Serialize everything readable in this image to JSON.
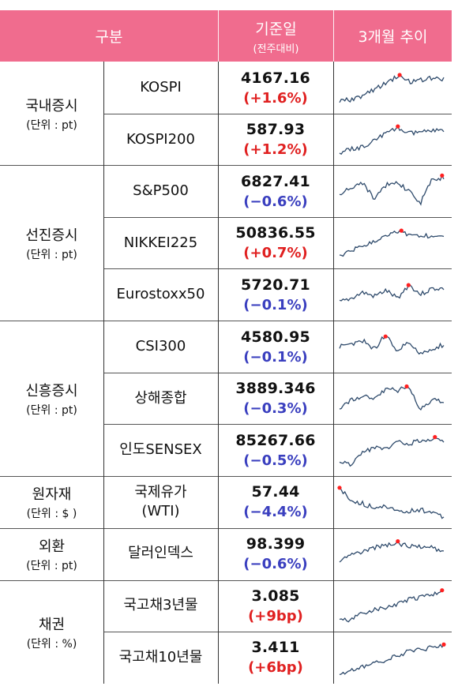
{
  "header": {
    "category": "구분",
    "date_label": "기준일",
    "date_sub": "(전주대비)",
    "trend_label": "3개월 추이"
  },
  "groups": [
    {
      "name": "국내증시",
      "unit": "(단위 : pt)"
    },
    {
      "name": "선진증시",
      "unit": "(단위 : pt)"
    },
    {
      "name": "신흥증시",
      "unit": "(단위 : pt)"
    },
    {
      "name": "원자재",
      "unit": "(단위 : $ )"
    },
    {
      "name": "외환",
      "unit": "(단위 : pt)"
    },
    {
      "name": "채권",
      "unit": "(단위 : %)"
    }
  ],
  "rows": [
    {
      "name": "KOSPI",
      "value": "4167.16",
      "change": "(+1.6%)",
      "direction": "up"
    },
    {
      "name": "KOSPI200",
      "value": "587.93",
      "change": "(+1.2%)",
      "direction": "up"
    },
    {
      "name": "S&P500",
      "value": "6827.41",
      "change": "(−0.6%)",
      "direction": "down"
    },
    {
      "name": "NIKKEI225",
      "value": "50836.55",
      "change": "(+0.7%)",
      "direction": "up"
    },
    {
      "name": "Eurostoxx50",
      "value": "5720.71",
      "change": "(−0.1%)",
      "direction": "down"
    },
    {
      "name": "CSI300",
      "value": "4580.95",
      "change": "(−0.1%)",
      "direction": "down"
    },
    {
      "name": "상해종합",
      "value": "3889.346",
      "change": "(−0.3%)",
      "direction": "down"
    },
    {
      "name": "인도SENSEX",
      "value": "85267.66",
      "change": "(−0.5%)",
      "direction": "down"
    },
    {
      "name": "국제유가\n(WTI)",
      "value": "57.44",
      "change": "(−4.4%)",
      "direction": "down"
    },
    {
      "name": "달러인덱스",
      "value": "98.399",
      "change": "(−0.6%)",
      "direction": "down"
    },
    {
      "name": "국고채3년물",
      "value": "3.085",
      "change": "(+9bp)",
      "direction": "up"
    },
    {
      "name": "국고채10년물",
      "value": "3.411",
      "change": "(+6bp)",
      "direction": "up"
    }
  ],
  "colors": {
    "header_bg": "#f06c8e",
    "up": "#e02020",
    "down": "#3a3fbf",
    "spark_line": "#2e4a6b",
    "spark_peak": "#ff2020"
  }
}
